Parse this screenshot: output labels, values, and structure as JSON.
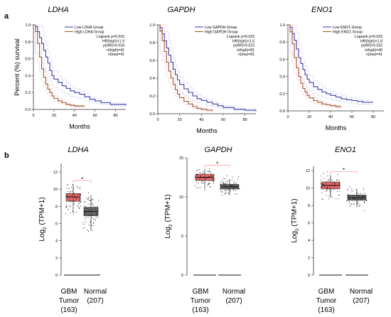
{
  "panel_letters": {
    "a": "a",
    "b": "b"
  },
  "colors": {
    "low": "#3a3aa8",
    "high": "#a0522d",
    "ci_low": "#b0b0e8",
    "ci_high": "#f0a8b8",
    "tumor": "#e05858",
    "normal": "#555555",
    "sig": "#e03030"
  },
  "chart_data": [
    {
      "type": "line",
      "subtype": "kaplan-meier",
      "title": "LDHA",
      "xlabel": "Months",
      "ylabel": "Percent (%) survival",
      "xlim": [
        0,
        90
      ],
      "ylim": [
        0,
        1
      ],
      "xticks": [
        "0",
        "20",
        "40",
        "60",
        "80"
      ],
      "yticks": [
        "0.0",
        "0.2",
        "0.4",
        "0.6",
        "0.8",
        "1.0"
      ],
      "legend": [
        "Low LDHA Group",
        "High LDHA Group"
      ],
      "stats": [
        "Logrank p=0.016",
        "HR(high)=1.9",
        "p(HR)=0.018",
        "n(high)=41",
        "n(low)=41"
      ],
      "series": [
        {
          "name": "Low LDHA Group",
          "x": [
            0,
            2,
            4,
            6,
            8,
            10,
            12,
            14,
            16,
            18,
            20,
            24,
            28,
            32,
            36,
            40,
            45,
            50,
            55,
            60,
            66,
            75,
            90
          ],
          "y": [
            1,
            0.98,
            0.92,
            0.85,
            0.78,
            0.7,
            0.62,
            0.55,
            0.46,
            0.4,
            0.36,
            0.32,
            0.28,
            0.25,
            0.22,
            0.2,
            0.18,
            0.15,
            0.12,
            0.1,
            0.08,
            0.06,
            0.05
          ]
        },
        {
          "name": "High LDHA Group",
          "x": [
            0,
            2,
            4,
            6,
            8,
            10,
            12,
            14,
            16,
            18,
            20,
            24,
            28,
            32,
            36,
            40,
            45,
            50
          ],
          "y": [
            1,
            0.92,
            0.78,
            0.62,
            0.48,
            0.38,
            0.3,
            0.24,
            0.2,
            0.16,
            0.13,
            0.1,
            0.08,
            0.06,
            0.05,
            0.04,
            0.04,
            0.04
          ]
        }
      ]
    },
    {
      "type": "line",
      "subtype": "kaplan-meier",
      "title": "GAPDH",
      "xlabel": "Months",
      "ylabel": "",
      "xlim": [
        0,
        90
      ],
      "ylim": [
        0,
        1
      ],
      "xticks": [
        "0",
        "20",
        "40",
        "60",
        "80"
      ],
      "yticks": [
        "0.0",
        "0.2",
        "0.4",
        "0.6",
        "0.8",
        "1.0"
      ],
      "legend": [
        "Low GAPDH Group",
        "High GAPDH Group"
      ],
      "stats": [
        "Logrank p=0.023",
        "HR(high)=1.5",
        "p(HR)=0.023",
        "n(high)=81",
        "n(low)=81"
      ],
      "series": [
        {
          "name": "Low GAPDH Group",
          "x": [
            0,
            2,
            4,
            6,
            8,
            10,
            12,
            14,
            16,
            18,
            20,
            24,
            28,
            32,
            36,
            40,
            45,
            50,
            55,
            60,
            70,
            80,
            90
          ],
          "y": [
            1,
            0.97,
            0.9,
            0.82,
            0.74,
            0.66,
            0.58,
            0.5,
            0.44,
            0.38,
            0.33,
            0.28,
            0.24,
            0.2,
            0.17,
            0.15,
            0.13,
            0.11,
            0.09,
            0.07,
            0.05,
            0.04,
            0.03
          ]
        },
        {
          "name": "High GAPDH Group",
          "x": [
            0,
            2,
            4,
            6,
            8,
            10,
            12,
            14,
            16,
            18,
            20,
            24,
            28,
            32,
            36,
            40,
            45,
            50
          ],
          "y": [
            1,
            0.93,
            0.82,
            0.7,
            0.58,
            0.48,
            0.4,
            0.33,
            0.27,
            0.22,
            0.18,
            0.14,
            0.11,
            0.08,
            0.06,
            0.05,
            0.04,
            0.03
          ]
        }
      ]
    },
    {
      "type": "line",
      "subtype": "kaplan-meier",
      "title": "ENO1",
      "xlabel": "Months",
      "ylabel": "",
      "xlim": [
        0,
        90
      ],
      "ylim": [
        0,
        1
      ],
      "xticks": [
        "0",
        "20",
        "40",
        "60",
        "80"
      ],
      "yticks": [
        "0.0",
        "0.2",
        "0.4",
        "0.6",
        "0.8",
        "1.0"
      ],
      "legend": [
        "Low ENO1 Group",
        "High ENO1 Group"
      ],
      "stats": [
        "Logrank p=0.033",
        "HR(high)=1.8",
        "p(HR)=0.032",
        "n(high)=40",
        "n(low)=41"
      ],
      "series": [
        {
          "name": "Low ENO1 Group",
          "x": [
            0,
            2,
            4,
            6,
            8,
            10,
            12,
            14,
            16,
            18,
            20,
            24,
            28,
            32,
            36,
            40,
            45,
            50,
            55,
            60,
            65,
            70,
            80
          ],
          "y": [
            1,
            0.97,
            0.9,
            0.82,
            0.72,
            0.62,
            0.55,
            0.48,
            0.42,
            0.37,
            0.33,
            0.28,
            0.25,
            0.22,
            0.2,
            0.18,
            0.16,
            0.14,
            0.13,
            0.12,
            0.11,
            0.1,
            0.1
          ]
        },
        {
          "name": "High ENO1 Group",
          "x": [
            0,
            2,
            4,
            6,
            8,
            10,
            12,
            14,
            16,
            18,
            20,
            24,
            28,
            32,
            36,
            40,
            45,
            50
          ],
          "y": [
            1,
            0.92,
            0.78,
            0.62,
            0.5,
            0.4,
            0.32,
            0.26,
            0.22,
            0.18,
            0.15,
            0.12,
            0.1,
            0.08,
            0.07,
            0.06,
            0.05,
            0.05
          ]
        }
      ]
    },
    {
      "type": "box",
      "title": "LDHA",
      "ylabel_prefix": "Log",
      "ylabel_sub": "2",
      "ylabel_suffix": " (TPM+1)",
      "ylim": [
        0,
        13
      ],
      "yticks": [
        "0",
        "2",
        "4",
        "6",
        "8",
        "10",
        "12"
      ],
      "significance": "*",
      "categories": [
        {
          "line1": "GBM",
          "line2": "Tumor",
          "line3": "(163)"
        },
        {
          "line1": "Normal",
          "line2": "(207)",
          "line3": ""
        }
      ],
      "series": [
        {
          "group": "tumor",
          "q1": 8.6,
          "median": 9.1,
          "q3": 9.5,
          "whisker_low": 7.2,
          "whisker_high": 10.6
        },
        {
          "group": "normal",
          "q1": 6.9,
          "median": 7.4,
          "q3": 7.9,
          "whisker_low": 5.2,
          "whisker_high": 9.3
        }
      ]
    },
    {
      "type": "box",
      "title": "GAPDH",
      "ylabel_prefix": "Log",
      "ylabel_sub": "2",
      "ylabel_suffix": " (TPM+1)",
      "ylim": [
        0,
        15
      ],
      "yticks": [
        "0",
        "5",
        "10",
        "15"
      ],
      "significance": "*",
      "categories": [
        {
          "line1": "GBM",
          "line2": "Tumor",
          "line3": "(163)"
        },
        {
          "line1": "Normal",
          "line2": "(207)",
          "line3": ""
        }
      ],
      "series": [
        {
          "group": "tumor",
          "q1": 12.1,
          "median": 12.5,
          "q3": 12.9,
          "whisker_low": 11.0,
          "whisker_high": 13.6
        },
        {
          "group": "normal",
          "q1": 11.0,
          "median": 11.3,
          "q3": 11.6,
          "whisker_low": 10.2,
          "whisker_high": 12.3
        }
      ]
    },
    {
      "type": "box",
      "title": "ENO1",
      "ylabel_prefix": "Log",
      "ylabel_sub": "2",
      "ylabel_suffix": " (TPM+1)",
      "ylim": [
        0,
        12.5
      ],
      "yticks": [
        "0",
        "2",
        "4",
        "6",
        "8",
        "10",
        "12"
      ],
      "significance": "*",
      "categories": [
        {
          "line1": "GBM",
          "line2": "Tumor",
          "line3": "(163)"
        },
        {
          "line1": "Normal",
          "line2": "(207)",
          "line3": ""
        }
      ],
      "series": [
        {
          "group": "tumor",
          "q1": 9.9,
          "median": 10.3,
          "q3": 10.7,
          "whisker_low": 8.9,
          "whisker_high": 11.5
        },
        {
          "group": "normal",
          "q1": 8.6,
          "median": 8.9,
          "q3": 9.2,
          "whisker_low": 7.8,
          "whisker_high": 9.9
        }
      ]
    }
  ]
}
